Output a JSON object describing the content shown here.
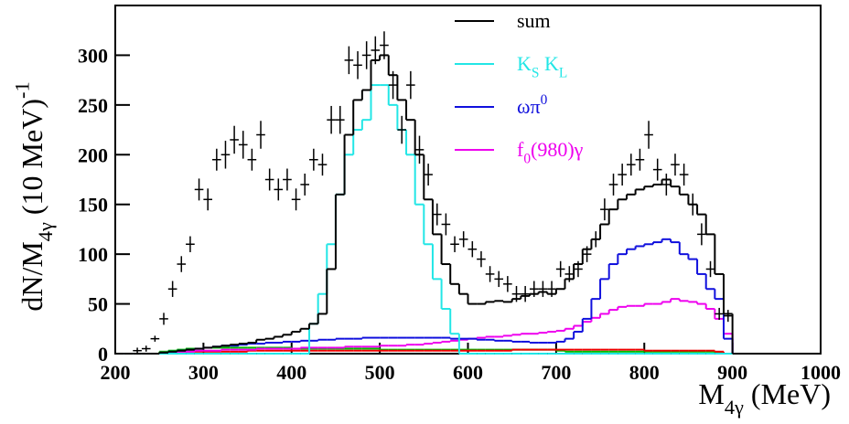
{
  "chart_data": {
    "type": "histogram",
    "xlabel": [
      {
        "text": "M"
      },
      {
        "text": "4γ",
        "shift": "sub"
      },
      {
        "text": " (MeV)"
      }
    ],
    "ylabel": [
      {
        "text": "dN/M"
      },
      {
        "text": "4γ",
        "shift": "sub"
      },
      {
        "text": " (10 MeV)"
      },
      {
        "text": "-1",
        "shift": "super"
      }
    ],
    "xlim": [
      200,
      1000
    ],
    "ylim": [
      0,
      350
    ],
    "xticks": [
      200,
      300,
      400,
      500,
      600,
      700,
      800,
      900,
      1000
    ],
    "yticks": [
      0,
      50,
      100,
      150,
      200,
      250,
      300
    ],
    "legend": "top",
    "bins": [
      200,
      210,
      220,
      230,
      240,
      250,
      260,
      270,
      280,
      290,
      300,
      310,
      320,
      330,
      340,
      350,
      360,
      370,
      380,
      390,
      400,
      410,
      420,
      430,
      440,
      450,
      460,
      470,
      480,
      490,
      500,
      510,
      520,
      530,
      540,
      550,
      560,
      570,
      580,
      590,
      600,
      610,
      620,
      630,
      640,
      650,
      660,
      670,
      680,
      690,
      700,
      710,
      720,
      730,
      740,
      750,
      760,
      770,
      780,
      790,
      800,
      810,
      820,
      830,
      840,
      850,
      860,
      870,
      880,
      890,
      900
    ],
    "series": [
      {
        "name": [
          {
            "text": "sum"
          }
        ],
        "color": "#000000",
        "values": [
          0,
          0,
          0,
          0,
          0,
          1,
          2,
          3,
          4,
          5,
          6,
          7,
          8,
          9,
          10,
          11,
          14,
          15,
          17,
          19,
          22,
          25,
          30,
          40,
          85,
          160,
          220,
          255,
          265,
          295,
          300,
          280,
          255,
          235,
          200,
          155,
          120,
          90,
          70,
          60,
          50,
          50,
          52,
          53,
          52,
          55,
          58,
          60,
          62,
          60,
          65,
          75,
          90,
          105,
          115,
          130,
          145,
          155,
          160,
          165,
          168,
          170,
          175,
          168,
          160,
          150,
          140,
          120,
          80,
          40
        ]
      },
      {
        "name": [
          {
            "text": "K"
          },
          {
            "text": "S",
            "shift": "sub"
          },
          {
            "text": " K"
          },
          {
            "text": "L",
            "shift": "sub"
          }
        ],
        "color": "#22e6e6",
        "values": [
          0,
          0,
          0,
          0,
          0,
          0,
          0,
          0,
          0,
          0,
          0,
          0,
          0,
          0,
          0,
          0,
          0,
          0,
          0,
          0,
          0,
          0,
          30,
          60,
          110,
          160,
          200,
          225,
          235,
          270,
          270,
          250,
          225,
          200,
          150,
          110,
          75,
          45,
          20,
          0,
          0,
          0,
          0,
          0,
          0,
          0,
          0,
          0,
          0,
          0,
          0,
          0,
          0,
          0,
          0,
          0,
          0,
          0,
          0,
          0,
          0,
          0,
          0,
          0,
          0,
          0,
          0,
          0,
          0,
          0
        ]
      },
      {
        "name": [
          {
            "text": "ωπ"
          },
          {
            "text": "0",
            "shift": "super"
          }
        ],
        "color": "#1010dd",
        "values": [
          0,
          0,
          0,
          0,
          0,
          1,
          2,
          3,
          4,
          5,
          6,
          7,
          8,
          8,
          9,
          10,
          10,
          11,
          11,
          12,
          12,
          13,
          13,
          14,
          14,
          15,
          15,
          15,
          16,
          16,
          16,
          16,
          16,
          16,
          16,
          16,
          16,
          16,
          15,
          15,
          15,
          14,
          14,
          13,
          13,
          12,
          12,
          11,
          11,
          11,
          12,
          15,
          22,
          35,
          55,
          75,
          90,
          100,
          105,
          108,
          110,
          112,
          115,
          112,
          100,
          95,
          80,
          65,
          55,
          15
        ]
      },
      {
        "name": [
          {
            "text": "f"
          },
          {
            "text": "0",
            "shift": "sub"
          },
          {
            "text": "(980)γ"
          }
        ],
        "color": "#ee00ee",
        "values": [
          0,
          0,
          0,
          0,
          0,
          1,
          1,
          2,
          2,
          3,
          3,
          3,
          4,
          4,
          4,
          4,
          5,
          5,
          5,
          5,
          5,
          6,
          6,
          6,
          6,
          6,
          7,
          7,
          7,
          7,
          8,
          8,
          8,
          9,
          9,
          10,
          11,
          12,
          13,
          14,
          15,
          16,
          17,
          17,
          18,
          19,
          20,
          20,
          21,
          22,
          23,
          25,
          28,
          32,
          36,
          40,
          44,
          47,
          48,
          48,
          50,
          50,
          52,
          55,
          53,
          52,
          50,
          45,
          35,
          20
        ]
      },
      {
        "color": "#00bb00",
        "values": [
          0,
          0,
          0,
          0,
          0,
          2,
          3,
          4,
          5,
          5,
          6,
          6,
          6,
          6,
          6,
          6,
          6,
          6,
          6,
          6,
          5,
          5,
          5,
          5,
          5,
          5,
          5,
          5,
          5,
          5,
          4,
          4,
          4,
          4,
          4,
          4,
          4,
          4,
          4,
          4,
          4,
          4,
          4,
          4,
          4,
          4,
          4,
          4,
          4,
          4,
          3,
          2,
          2,
          2,
          2,
          2,
          2,
          2,
          2,
          2,
          2,
          2,
          2,
          2,
          2,
          2,
          2,
          2,
          1,
          0
        ]
      },
      {
        "color": "#ee0000",
        "values": [
          0,
          0,
          0,
          0,
          0,
          1,
          1,
          2,
          2,
          2,
          2,
          2,
          2,
          2,
          2,
          3,
          3,
          3,
          3,
          3,
          3,
          3,
          3,
          3,
          3,
          3,
          3,
          3,
          3,
          3,
          3,
          3,
          3,
          3,
          3,
          3,
          3,
          3,
          3,
          3,
          3,
          3,
          3,
          3,
          3,
          4,
          4,
          4,
          4,
          4,
          4,
          4,
          4,
          4,
          4,
          4,
          4,
          4,
          4,
          4,
          3,
          3,
          3,
          3,
          3,
          3,
          3,
          3,
          2,
          0
        ]
      }
    ],
    "points": {
      "color": "#000000",
      "x": [
        225,
        235,
        245,
        255,
        265,
        275,
        285,
        295,
        305,
        315,
        325,
        335,
        345,
        355,
        365,
        375,
        385,
        395,
        405,
        415,
        425,
        435,
        445,
        455,
        465,
        475,
        485,
        495,
        505,
        515,
        525,
        535,
        545,
        555,
        565,
        575,
        585,
        595,
        605,
        615,
        625,
        635,
        645,
        655,
        665,
        675,
        685,
        695,
        705,
        715,
        725,
        735,
        745,
        755,
        765,
        775,
        785,
        795,
        805,
        815,
        825,
        835,
        845,
        855,
        865,
        875,
        885,
        895
      ],
      "values": [
        3,
        5,
        15,
        35,
        65,
        90,
        110,
        165,
        155,
        195,
        200,
        215,
        210,
        195,
        220,
        175,
        165,
        175,
        155,
        170,
        195,
        190,
        235,
        235,
        295,
        290,
        300,
        305,
        310,
        270,
        225,
        270,
        205,
        180,
        140,
        130,
        110,
        115,
        105,
        95,
        80,
        75,
        70,
        60,
        60,
        65,
        65,
        65,
        85,
        80,
        85,
        100,
        115,
        145,
        170,
        180,
        190,
        195,
        220,
        185,
        170,
        190,
        180,
        150,
        120,
        85,
        40,
        38
      ],
      "errors": [
        3,
        3,
        3,
        6,
        8,
        8,
        8,
        11,
        11,
        11,
        14,
        14,
        14,
        11,
        14,
        11,
        11,
        11,
        11,
        11,
        11,
        11,
        14,
        14,
        14,
        14,
        14,
        14,
        14,
        14,
        14,
        14,
        14,
        11,
        11,
        11,
        8,
        8,
        8,
        8,
        8,
        8,
        8,
        8,
        8,
        8,
        8,
        8,
        8,
        8,
        8,
        8,
        8,
        11,
        11,
        11,
        11,
        11,
        14,
        11,
        11,
        11,
        11,
        11,
        11,
        8,
        6,
        6
      ]
    }
  }
}
